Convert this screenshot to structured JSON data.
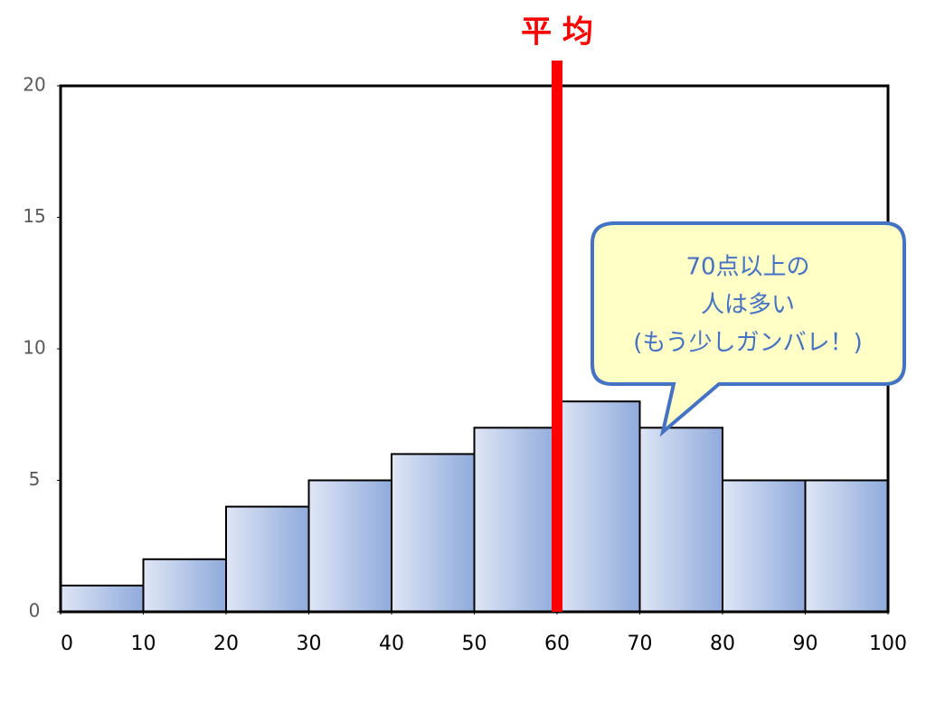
{
  "chart_data": {
    "type": "histogram",
    "bins": [
      0,
      10,
      20,
      30,
      40,
      50,
      60,
      70,
      80,
      90,
      100
    ],
    "values": [
      1,
      2,
      4,
      5,
      6,
      7,
      8,
      7,
      5,
      5
    ],
    "color": "#8faadc",
    "xlim": [
      0,
      100
    ],
    "ylim": [
      0,
      20
    ],
    "xticks": [
      0,
      10,
      20,
      30,
      40,
      50,
      60,
      70,
      80,
      90,
      100
    ],
    "yticks": [
      0,
      5,
      10,
      15,
      20
    ],
    "mean_line": {
      "value": 60,
      "label": "平 均",
      "color": "#ff0000"
    },
    "callout": {
      "lines": [
        "70点以上の",
        "人は多い",
        "(もう少しガンバレ！)"
      ],
      "color": "#4472c4",
      "fill": "#ffffc6"
    }
  }
}
